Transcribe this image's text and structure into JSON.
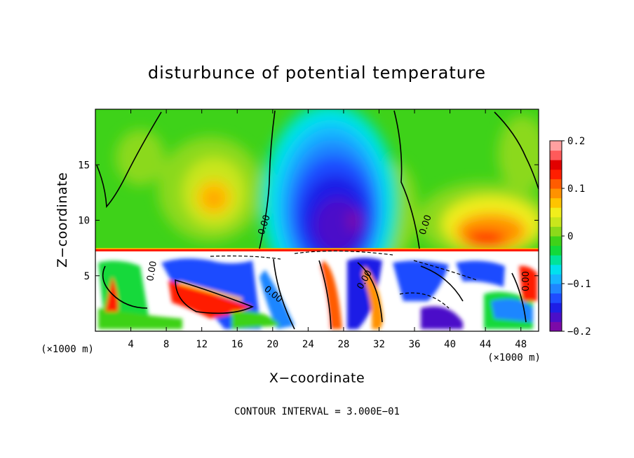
{
  "chart_data": {
    "type": "heatmap",
    "title": "disturbunce of potential temperature",
    "xlabel": "X−coordinate",
    "ylabel": "Z−coordinate",
    "x_unit": "(×1000 m)",
    "y_unit": "(×1000 m)",
    "xlim": [
      0,
      50
    ],
    "ylim": [
      0,
      20
    ],
    "x_ticks": [
      4,
      8,
      12,
      16,
      20,
      24,
      28,
      32,
      36,
      40,
      44,
      48
    ],
    "y_ticks": [
      5,
      10,
      15
    ],
    "colorbar": {
      "min": -0.2,
      "max": 0.2,
      "tick_values": [
        0.2,
        0.1,
        0,
        -0.1,
        -0.2
      ],
      "tick_labels": [
        "0.2",
        "0.1",
        "0",
        "−0.1",
        "−0.2"
      ],
      "colors": [
        "#7c0aa8",
        "#4b0fc9",
        "#1e1ee6",
        "#1f4cff",
        "#1f86ff",
        "#16b6ff",
        "#00e1ef",
        "#00e39a",
        "#12d93a",
        "#3ed219",
        "#8bd91a",
        "#c9e61c",
        "#f1ee1c",
        "#fec400",
        "#ff9200",
        "#ff5c00",
        "#ff1e00",
        "#e20000",
        "#ff5a5a",
        "#ffa0a0"
      ]
    },
    "contour_labels": [
      "0.00",
      "0.00",
      "0.00",
      "0.00",
      "0.00",
      "0.00"
    ],
    "contour_interval_text": "CONTOUR INTERVAL = 3.000E−01",
    "features": [
      {
        "name": "cold core",
        "x": 28,
        "z": 11,
        "value": -0.2
      },
      {
        "name": "warm anomaly left",
        "x": 13,
        "z": 12,
        "value": 0.1
      },
      {
        "name": "warm anomaly right",
        "x": 44,
        "z": 8.5,
        "value": 0.1
      },
      {
        "name": "inversion layer",
        "z": 7.3
      }
    ]
  }
}
